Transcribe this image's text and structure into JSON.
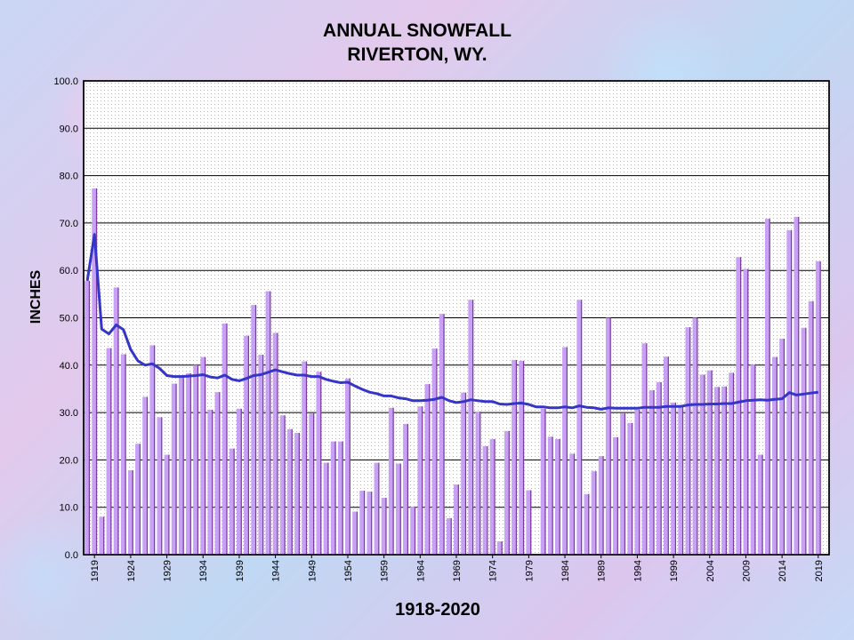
{
  "chart_data": {
    "type": "bar",
    "title": [
      "ANNUAL SNOWFALL",
      "RIVERTON, WY."
    ],
    "xlabel": "1918-2020",
    "ylabel": "INCHES",
    "ylim": [
      0,
      100
    ],
    "yticks": [
      "0.0",
      "10.0",
      "20.0",
      "30.0",
      "40.0",
      "50.0",
      "60.0",
      "70.0",
      "80.0",
      "90.0",
      "100.0"
    ],
    "xticks": [
      "1919",
      "1924",
      "1929",
      "1934",
      "1939",
      "1944",
      "1949",
      "1954",
      "1959",
      "1964",
      "1969",
      "1974",
      "1979",
      "1984",
      "1989",
      "1994",
      "1999",
      "2004",
      "2009",
      "2014",
      "2019"
    ],
    "grid": true,
    "colors": {
      "bars": "#c8a0f5",
      "bar_edge": "#7a3c9a",
      "line": "#3535c8",
      "plot_bg": "#ffffff"
    },
    "series": [
      {
        "type": "bar",
        "x": [
          1918,
          1919,
          1920,
          1921,
          1922,
          1923,
          1924,
          1925,
          1926,
          1927,
          1928,
          1929,
          1930,
          1931,
          1932,
          1933,
          1934,
          1935,
          1936,
          1937,
          1938,
          1939,
          1940,
          1941,
          1942,
          1943,
          1944,
          1945,
          1946,
          1947,
          1948,
          1949,
          1950,
          1951,
          1952,
          1953,
          1954,
          1955,
          1956,
          1957,
          1958,
          1959,
          1960,
          1961,
          1962,
          1963,
          1964,
          1965,
          1966,
          1967,
          1968,
          1969,
          1970,
          1971,
          1972,
          1973,
          1974,
          1975,
          1976,
          1977,
          1978,
          1979,
          1980,
          1981,
          1982,
          1983,
          1984,
          1985,
          1986,
          1987,
          1988,
          1989,
          1990,
          1991,
          1992,
          1993,
          1994,
          1995,
          1996,
          1997,
          1998,
          1999,
          2000,
          2001,
          2002,
          2003,
          2004,
          2005,
          2006,
          2007,
          2008,
          2009,
          2010,
          2011,
          2012,
          2013,
          2014,
          2015,
          2016,
          2017,
          2018,
          2019,
          2020
        ],
        "values": [
          57.8,
          77.3,
          8.0,
          43.6,
          56.4,
          42.3,
          17.8,
          23.4,
          33.3,
          44.2,
          29.0,
          21.1,
          36.1,
          37.5,
          38.3,
          40.0,
          41.7,
          30.6,
          34.3,
          48.8,
          22.4,
          30.8,
          46.2,
          52.7,
          42.2,
          55.6,
          46.8,
          29.4,
          26.5,
          25.7,
          40.8,
          29.8,
          38.6,
          19.4,
          23.9,
          23.9,
          37.2,
          9.1,
          13.5,
          13.3,
          19.4,
          12.0,
          31.0,
          19.2,
          27.6,
          10.1,
          31.3,
          36.0,
          43.5,
          50.8,
          7.7,
          14.8,
          34.2,
          53.8,
          30.2,
          22.9,
          24.4,
          2.8,
          26.1,
          41.1,
          40.9,
          13.6,
          0.0,
          30.8,
          24.9,
          24.4,
          43.8,
          21.3,
          53.8,
          12.8,
          17.6,
          20.8,
          50.0,
          24.8,
          29.8,
          27.8,
          30.6,
          44.6,
          34.7,
          36.4,
          41.8,
          32.1,
          31.6,
          48.0,
          50.0,
          38.0,
          38.9,
          35.4,
          35.5,
          38.4,
          62.8,
          60.3,
          40.1,
          21.1,
          70.9,
          41.7,
          45.6,
          68.5,
          71.3,
          47.9,
          53.5,
          61.9,
          0.0
        ]
      },
      {
        "type": "line",
        "name": "",
        "x": [
          1918,
          1919,
          1920,
          1921,
          1922,
          1923,
          1924,
          1925,
          1926,
          1927,
          1928,
          1929,
          1930,
          1931,
          1932,
          1933,
          1934,
          1935,
          1936,
          1937,
          1938,
          1939,
          1940,
          1941,
          1942,
          1943,
          1944,
          1945,
          1946,
          1947,
          1948,
          1949,
          1950,
          1951,
          1952,
          1953,
          1954,
          1955,
          1956,
          1957,
          1958,
          1959,
          1960,
          1961,
          1962,
          1963,
          1964,
          1965,
          1966,
          1967,
          1968,
          1969,
          1970,
          1971,
          1972,
          1973,
          1974,
          1975,
          1976,
          1977,
          1978,
          1979,
          1980,
          1981,
          1982,
          1983,
          1984,
          1985,
          1986,
          1987,
          1988,
          1989,
          1990,
          1991,
          1992,
          1993,
          1994,
          1995,
          1996,
          1997,
          1998,
          1999,
          2000,
          2001,
          2002,
          2003,
          2004,
          2005,
          2006,
          2007,
          2008,
          2009,
          2010,
          2011,
          2012,
          2013,
          2014,
          2015,
          2016,
          2017,
          2018,
          2019
        ],
        "values": [
          57.8,
          67.6,
          47.6,
          46.6,
          48.5,
          47.5,
          43.3,
          40.9,
          40.0,
          40.3,
          39.3,
          37.8,
          37.6,
          37.6,
          37.7,
          37.8,
          38.0,
          37.5,
          37.3,
          37.9,
          37.0,
          36.7,
          37.2,
          37.8,
          38.0,
          38.5,
          39.0,
          38.6,
          38.2,
          37.9,
          37.9,
          37.6,
          37.6,
          37.0,
          36.6,
          36.3,
          36.4,
          35.6,
          34.9,
          34.3,
          34.0,
          33.5,
          33.5,
          33.1,
          32.9,
          32.5,
          32.5,
          32.6,
          32.8,
          33.2,
          32.5,
          32.1,
          32.3,
          32.7,
          32.5,
          32.3,
          32.3,
          31.8,
          31.7,
          31.9,
          32.0,
          31.7,
          31.2,
          31.2,
          31.0,
          31.0,
          31.2,
          31.0,
          31.4,
          31.1,
          31.0,
          30.7,
          31.0,
          30.9,
          30.9,
          30.9,
          30.9,
          31.1,
          31.1,
          31.1,
          31.3,
          31.3,
          31.3,
          31.6,
          31.7,
          31.7,
          31.8,
          31.8,
          31.9,
          31.9,
          32.2,
          32.5,
          32.6,
          32.7,
          32.6,
          32.8,
          32.9,
          34.2,
          33.7,
          33.9,
          34.1,
          34.3
        ]
      }
    ]
  }
}
